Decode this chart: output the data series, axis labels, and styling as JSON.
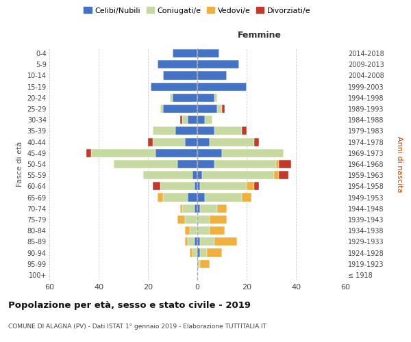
{
  "age_groups": [
    "100+",
    "95-99",
    "90-94",
    "85-89",
    "80-84",
    "75-79",
    "70-74",
    "65-69",
    "60-64",
    "55-59",
    "50-54",
    "45-49",
    "40-44",
    "35-39",
    "30-34",
    "25-29",
    "20-24",
    "15-19",
    "10-14",
    "5-9",
    "0-4"
  ],
  "birth_years": [
    "≤ 1918",
    "1919-1923",
    "1924-1928",
    "1929-1933",
    "1934-1938",
    "1939-1943",
    "1944-1948",
    "1949-1953",
    "1954-1958",
    "1959-1963",
    "1964-1968",
    "1969-1973",
    "1974-1978",
    "1979-1983",
    "1984-1988",
    "1989-1993",
    "1994-1998",
    "1999-2003",
    "2004-2008",
    "2009-2013",
    "2014-2018"
  ],
  "male_celibi": [
    0,
    0,
    0,
    1,
    0,
    0,
    1,
    4,
    1,
    2,
    8,
    17,
    5,
    9,
    4,
    14,
    10,
    19,
    14,
    16,
    10
  ],
  "male_coniugati": [
    0,
    0,
    2,
    3,
    3,
    5,
    5,
    10,
    14,
    20,
    26,
    26,
    13,
    9,
    2,
    1,
    1,
    0,
    0,
    0,
    0
  ],
  "male_vedovi": [
    0,
    0,
    1,
    1,
    2,
    3,
    1,
    2,
    0,
    0,
    0,
    0,
    0,
    0,
    0,
    0,
    0,
    0,
    0,
    0,
    0
  ],
  "male_divorziati": [
    0,
    0,
    0,
    0,
    0,
    0,
    0,
    0,
    3,
    0,
    0,
    2,
    2,
    0,
    1,
    0,
    0,
    0,
    0,
    0,
    0
  ],
  "female_celibi": [
    0,
    0,
    1,
    1,
    0,
    0,
    1,
    3,
    1,
    2,
    7,
    10,
    5,
    7,
    3,
    8,
    7,
    20,
    12,
    17,
    9
  ],
  "female_coniugati": [
    0,
    1,
    3,
    6,
    5,
    5,
    7,
    15,
    19,
    29,
    25,
    25,
    18,
    11,
    3,
    2,
    1,
    0,
    0,
    0,
    0
  ],
  "female_vedovi": [
    0,
    4,
    6,
    9,
    6,
    7,
    4,
    4,
    3,
    2,
    1,
    0,
    0,
    0,
    0,
    0,
    0,
    0,
    0,
    0,
    0
  ],
  "female_divorziati": [
    0,
    0,
    0,
    0,
    0,
    0,
    0,
    0,
    2,
    4,
    5,
    0,
    2,
    2,
    0,
    1,
    0,
    0,
    0,
    0,
    0
  ],
  "color_celibi": "#4472c4",
  "color_coniugati": "#c5d9a0",
  "color_vedovi": "#f0b040",
  "color_divorziati": "#c0392b",
  "title": "Popolazione per età, sesso e stato civile - 2019",
  "subtitle": "COMUNE DI ALAGNA (PV) - Dati ISTAT 1° gennaio 2019 - Elaborazione TUTTITALIA.IT",
  "xlabel_right": "Femmine",
  "ylabel_left": "Fasce di età",
  "ylabel_right": "Anni di nascita",
  "xlim": 60,
  "bg_color": "#ffffff",
  "grid_color": "#cccccc"
}
